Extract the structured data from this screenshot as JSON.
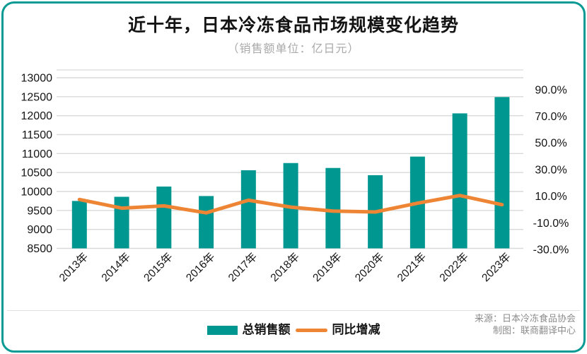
{
  "colors": {
    "bar_teal": "#009791",
    "line_orange": "#EE8534",
    "border_teal": "#0A9A94",
    "grid_gray": "#D9D9D9",
    "text_black": "#141414",
    "subtitle_gray": "#A9A9A9",
    "source_gray": "#8C8C8C",
    "divider_gray": "#E0E0E0"
  },
  "chart_data": {
    "type": "combo-bar-line",
    "title": "近十年，日本冷冻食品市场规模变化趋势",
    "subtitle": "（销售额单位：亿日元）",
    "categories": [
      "2013年",
      "2014年",
      "2015年",
      "2016年",
      "2017年",
      "2018年",
      "2019年",
      "2020年",
      "2021年",
      "2022年",
      "2023年"
    ],
    "series": [
      {
        "name": "总销售额",
        "type": "bar",
        "axis": "left",
        "unit": "亿日元",
        "values": [
          9750,
          9860,
          10130,
          9880,
          10560,
          10750,
          10620,
          10430,
          10920,
          12060,
          12490
        ]
      },
      {
        "name": "同比增减",
        "type": "line",
        "axis": "right",
        "unit": "%",
        "values": [
          7.5,
          1.0,
          2.7,
          -2.5,
          6.9,
          1.8,
          -1.2,
          -1.9,
          4.7,
          10.5,
          3.6
        ]
      }
    ],
    "left_axis": {
      "min": 8500,
      "max": 13000,
      "step": 500,
      "tick_labels": [
        "13000",
        "12500",
        "12000",
        "11500",
        "11000",
        "10500",
        "10000",
        "9500",
        "9000",
        "8500"
      ]
    },
    "right_axis": {
      "min": -30,
      "max": 90,
      "step": 20,
      "tick_labels": [
        "90.0%",
        "70.0%",
        "50.0%",
        "30.0%",
        "10.0%",
        "-10.0%",
        "-30.0%"
      ]
    },
    "grid": true,
    "legend_position": "bottom"
  },
  "legend": {
    "bar_label": "总销售额",
    "line_label": "同比增减"
  },
  "footer": {
    "source": "来源：日本冷冻食品协会",
    "credit": "制图：联商翻译中心"
  }
}
